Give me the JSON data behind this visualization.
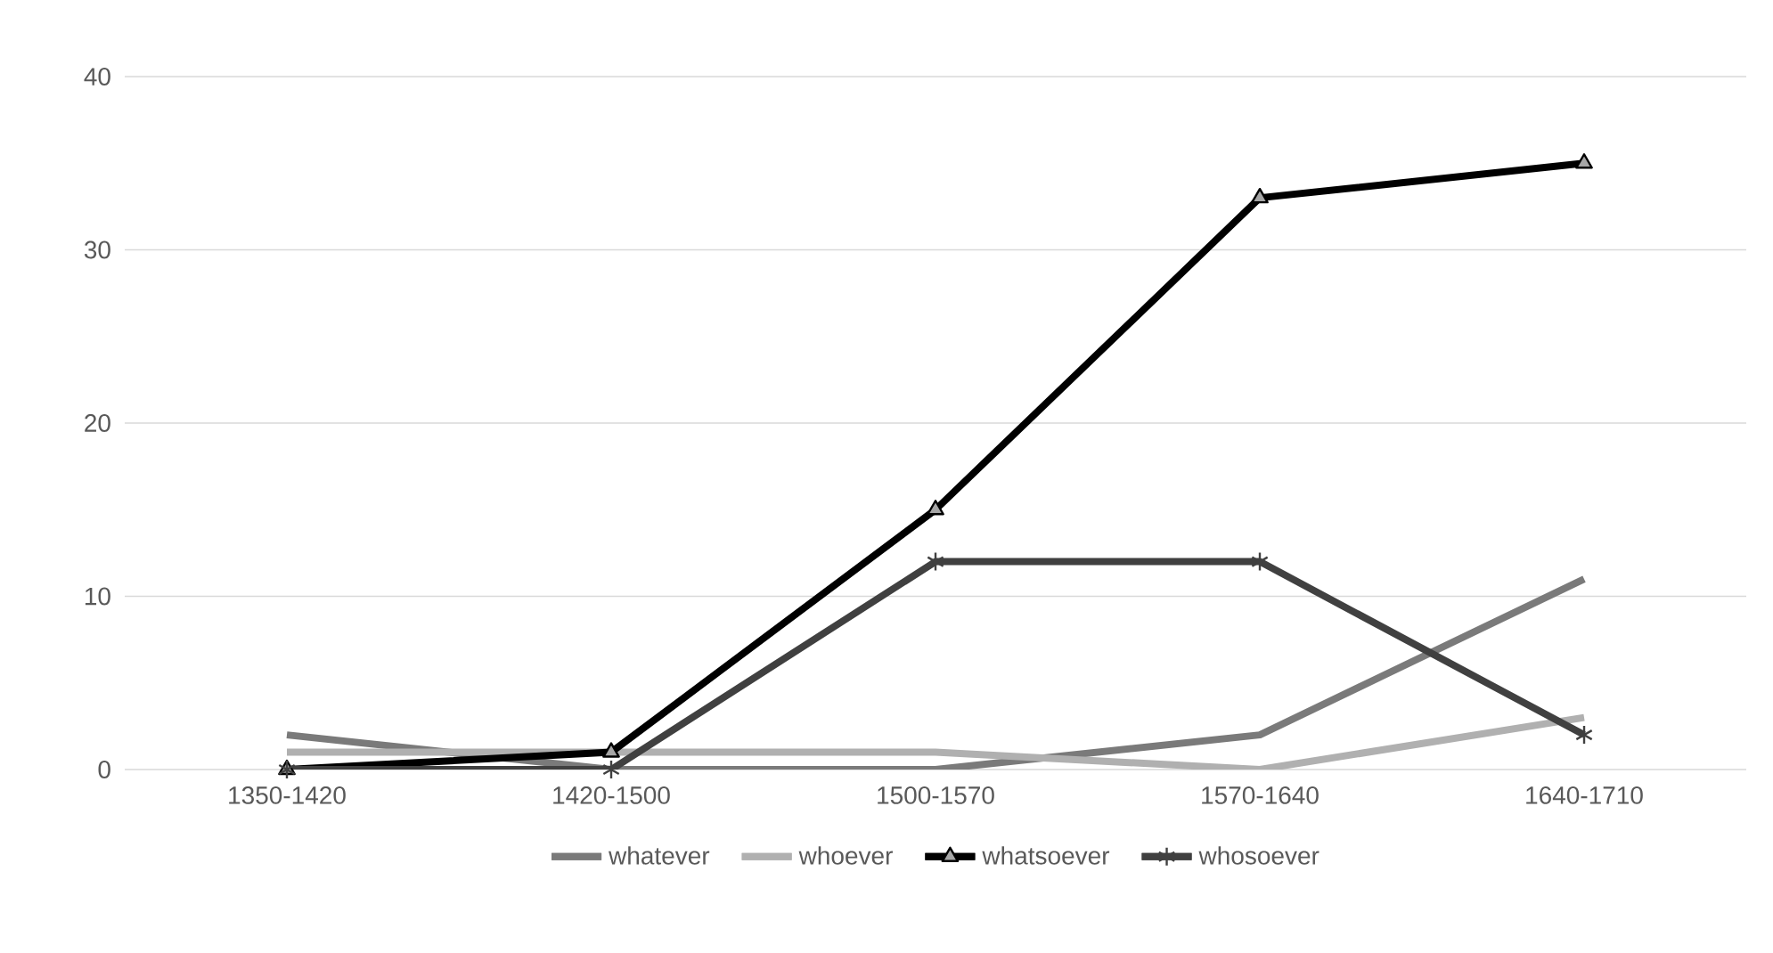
{
  "chart_data": {
    "type": "line",
    "categories": [
      "1350-1420",
      "1420-1500",
      "1500-1570",
      "1570-1640",
      "1640-1710"
    ],
    "series": [
      {
        "name": "whatever",
        "color": "#7a7a7a",
        "values": [
          2,
          0,
          0,
          2,
          11
        ]
      },
      {
        "name": "whoever",
        "color": "#b0b0b0",
        "values": [
          1,
          1,
          1,
          0,
          3
        ]
      },
      {
        "name": "whatsoever",
        "color": "#000000",
        "values": [
          0,
          1,
          15,
          33,
          35
        ],
        "marker": "triangle"
      },
      {
        "name": "whosoever",
        "color": "#404040",
        "values": [
          0,
          0,
          12,
          12,
          2
        ],
        "marker": "cross"
      }
    ],
    "ylim": [
      0,
      40
    ],
    "yticks": [
      0,
      10,
      20,
      30,
      40
    ],
    "grid": "y",
    "legend": "bottom",
    "marker": "none"
  }
}
